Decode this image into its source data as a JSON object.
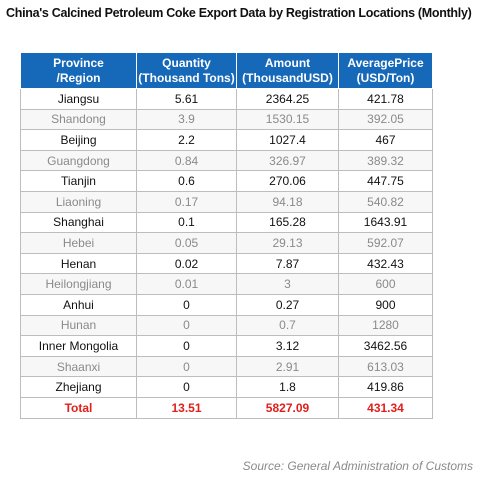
{
  "title": "China's Calcined Petroleum Coke Export Data by Registration Locations (Monthly)",
  "table": {
    "headers": [
      {
        "line1": "Province",
        "line2": "/Region"
      },
      {
        "line1": "Quantity",
        "line2": "(Thousand Tons)"
      },
      {
        "line1": "Amount",
        "line2": "(ThousandUSD)"
      },
      {
        "line1": "AveragePrice",
        "line2": "(USD/Ton)"
      }
    ],
    "rows": [
      {
        "region": "Jiangsu",
        "quantity": "5.61",
        "amount": "2364.25",
        "price": "421.78"
      },
      {
        "region": "Shandong",
        "quantity": "3.9",
        "amount": "1530.15",
        "price": "392.05"
      },
      {
        "region": "Beijing",
        "quantity": "2.2",
        "amount": "1027.4",
        "price": "467"
      },
      {
        "region": "Guangdong",
        "quantity": "0.84",
        "amount": "326.97",
        "price": "389.32"
      },
      {
        "region": "Tianjin",
        "quantity": "0.6",
        "amount": "270.06",
        "price": "447.75"
      },
      {
        "region": "Liaoning",
        "quantity": "0.17",
        "amount": "94.18",
        "price": "540.82"
      },
      {
        "region": "Shanghai",
        "quantity": "0.1",
        "amount": "165.28",
        "price": "1643.91"
      },
      {
        "region": "Hebei",
        "quantity": "0.05",
        "amount": "29.13",
        "price": "592.07"
      },
      {
        "region": "Henan",
        "quantity": "0.02",
        "amount": "7.87",
        "price": "432.43"
      },
      {
        "region": "Heilongjiang",
        "quantity": "0.01",
        "amount": "3",
        "price": "600"
      },
      {
        "region": "Anhui",
        "quantity": "0",
        "amount": "0.27",
        "price": "900"
      },
      {
        "region": "Hunan",
        "quantity": "0",
        "amount": "0.7",
        "price": "1280"
      },
      {
        "region": "Inner Mongolia",
        "quantity": "0",
        "amount": "3.12",
        "price": "3462.56"
      },
      {
        "region": "Shaanxi",
        "quantity": "0",
        "amount": "2.91",
        "price": "613.03"
      },
      {
        "region": "Zhejiang",
        "quantity": "0",
        "amount": "1.8",
        "price": "419.86"
      }
    ],
    "total": {
      "region": "Total",
      "quantity": "13.51",
      "amount": "5827.09",
      "price": "431.34"
    }
  },
  "source": "Source: General Administration of Customs",
  "colors": {
    "header_bg": "#1668b8",
    "total_text": "#e0201b",
    "muted_text": "#8a8a8a"
  }
}
